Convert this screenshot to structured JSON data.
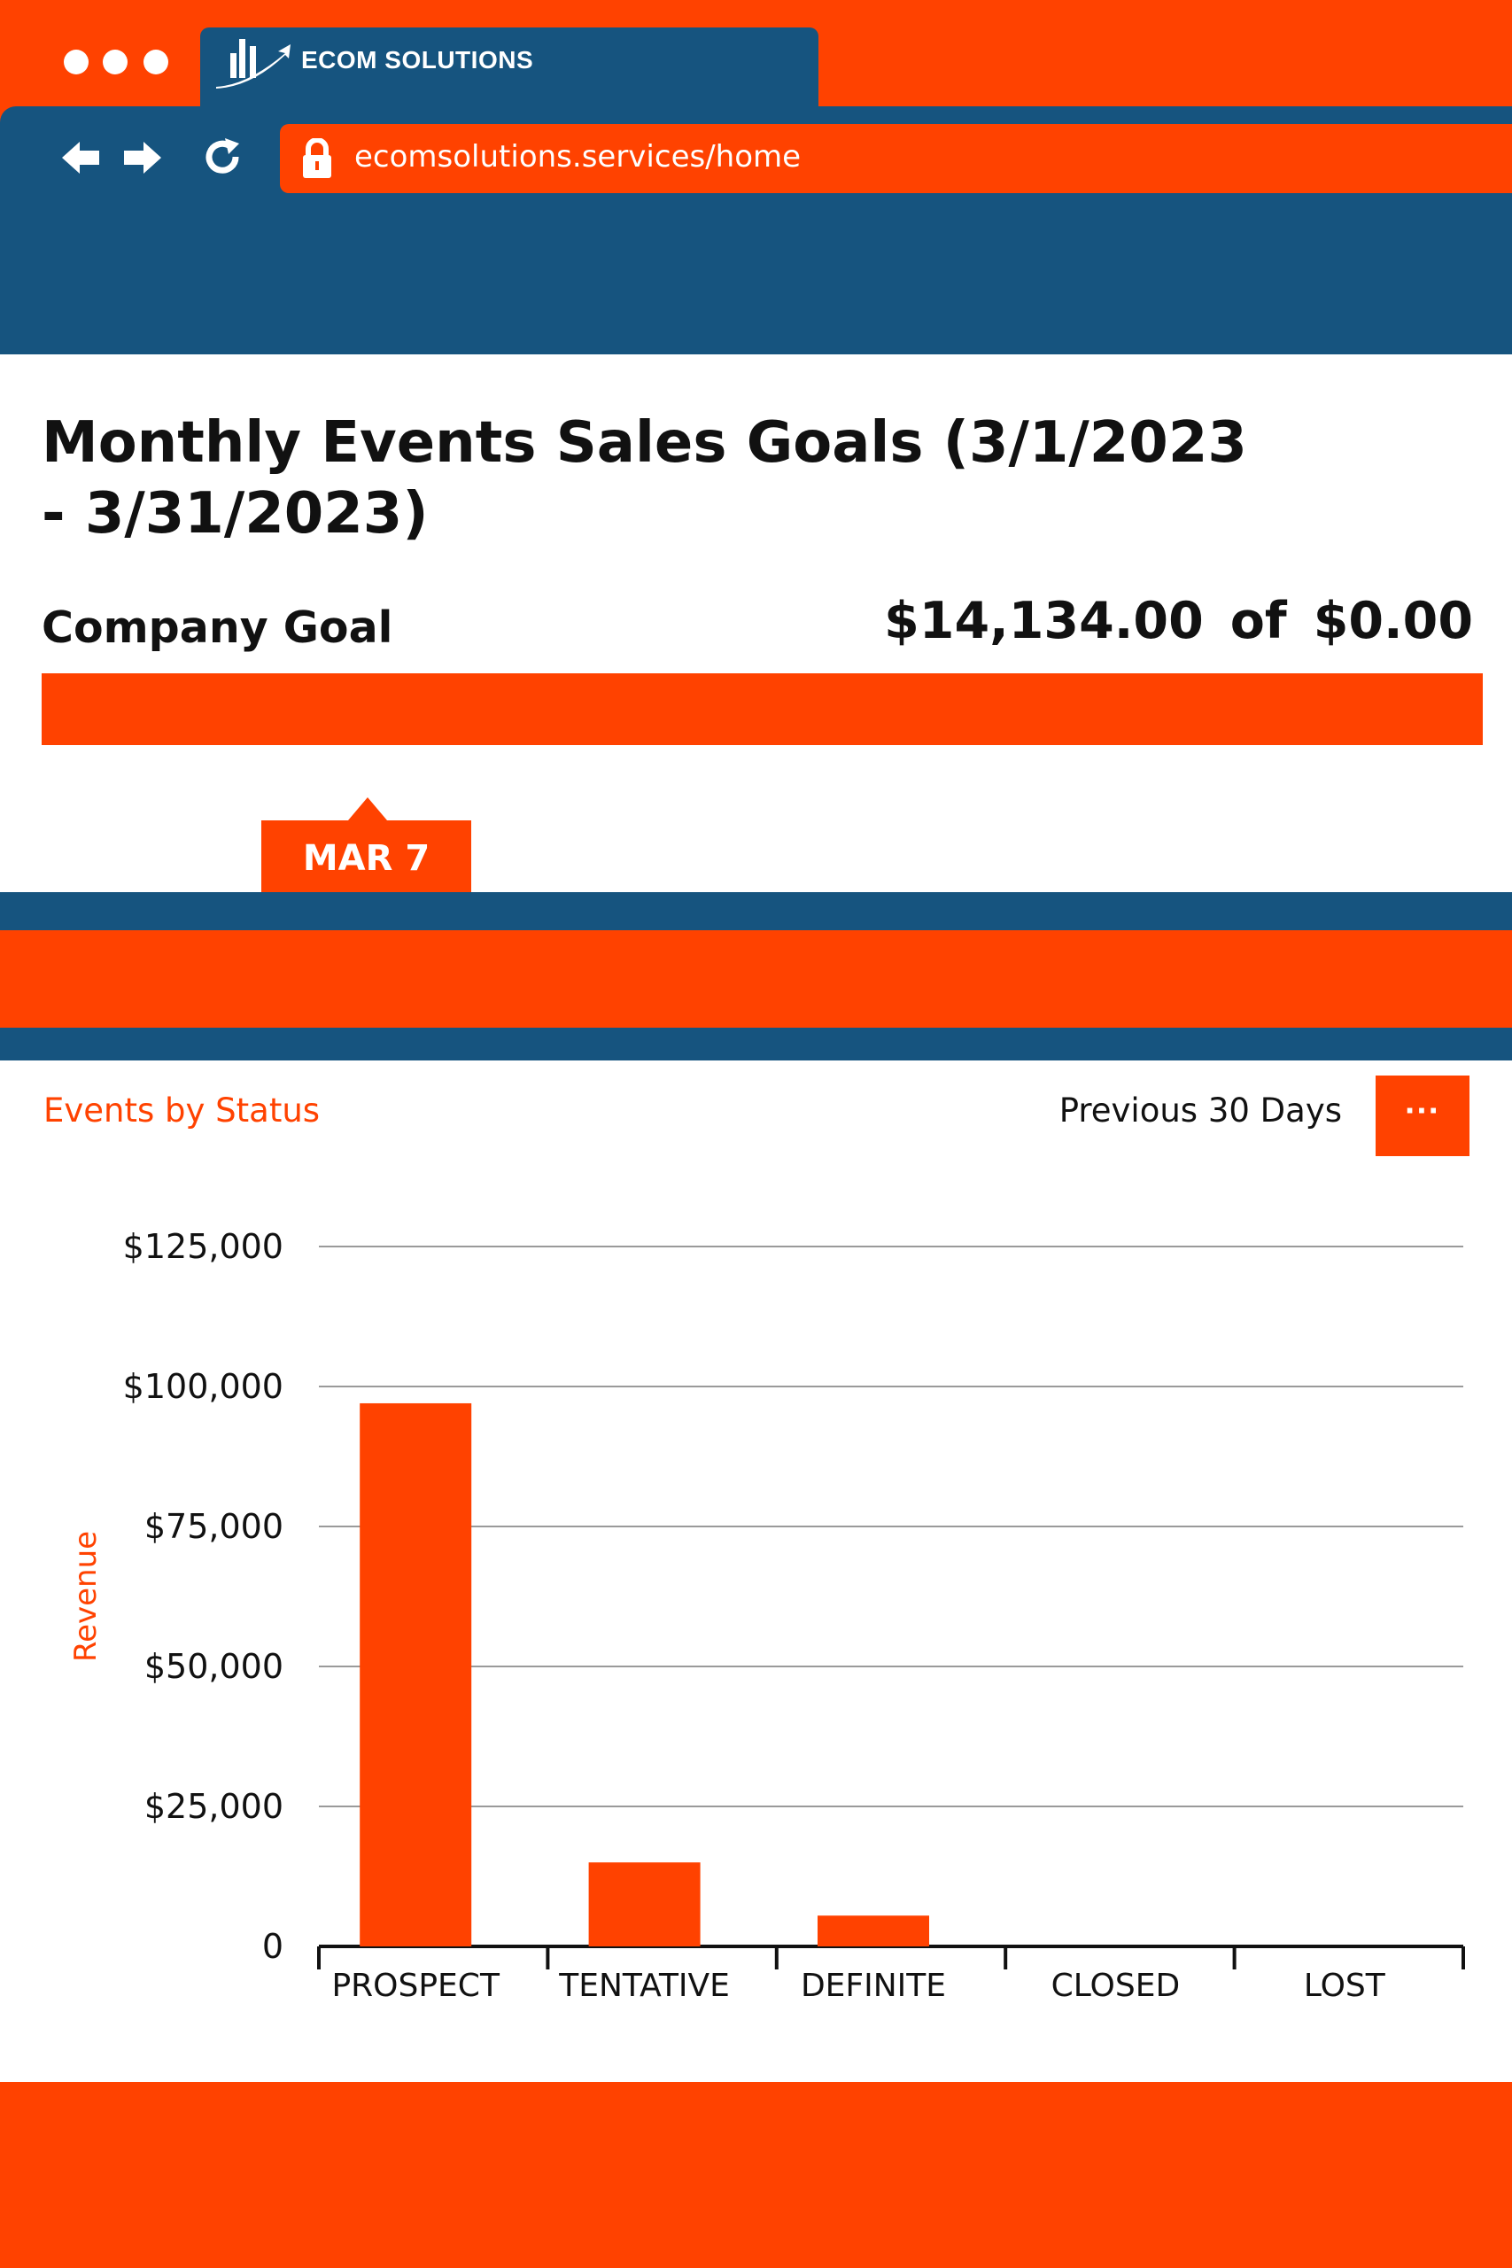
{
  "browser": {
    "tab_title": "ECOM SOLUTIONS",
    "url": "ecomsolutions.services/home",
    "icons": [
      "back-arrow-icon",
      "forward-arrow-icon",
      "reload-icon",
      "lock-icon",
      "logo-icon"
    ]
  },
  "page": {
    "title": "Monthly Events Sales Goals (3/1/2023 - 3/31/2023)",
    "goal_label": "Company Goal",
    "goal_amount": "$14,134.00",
    "goal_of": "of",
    "goal_target": "$0.00",
    "progress_fraction": 1.0,
    "date_marker": "MAR 7"
  },
  "section": {
    "title": "Events by Status",
    "period": "Previous 30 Days",
    "more_label": "···"
  },
  "colors": {
    "accent": "#ff4200",
    "navy": "#16547f"
  },
  "chart_data": {
    "type": "bar",
    "categories": [
      "PROSPECT",
      "TENTATIVE",
      "DEFINITE",
      "CLOSED",
      "LOST"
    ],
    "values": [
      97000,
      15000,
      5500,
      0,
      0
    ],
    "ylabel": "Revenue",
    "ylim": [
      0,
      125000
    ],
    "yticks": [
      0,
      25000,
      50000,
      75000,
      100000,
      125000
    ],
    "ytick_labels": [
      "0",
      "$25,000",
      "$50,000",
      "$75,000",
      "$100,000",
      "$125,000"
    ],
    "grid": true
  }
}
